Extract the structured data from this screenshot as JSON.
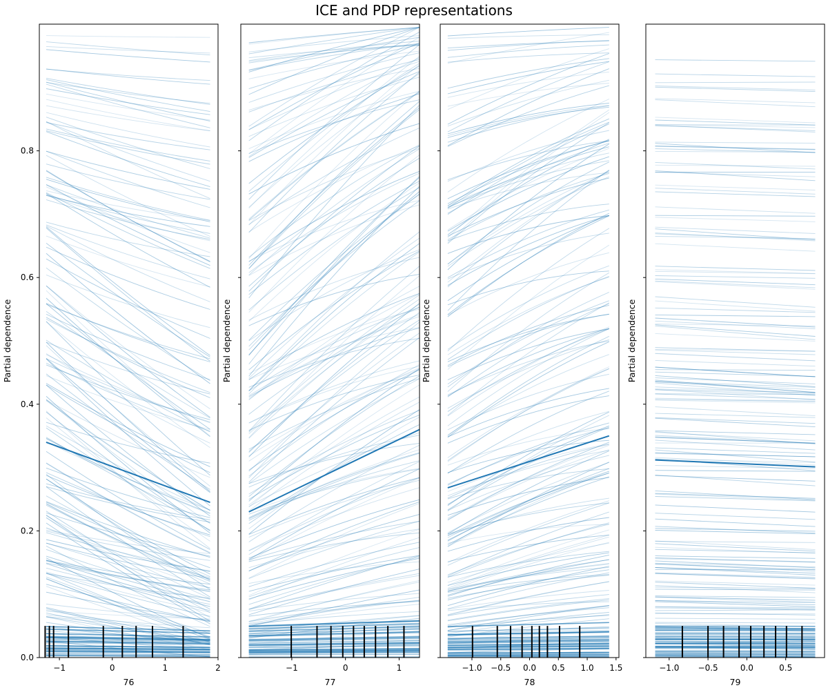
{
  "chart_data": {
    "type": "line",
    "title": "ICE and PDP representations",
    "ylabel": "Partial dependence",
    "ylim": [
      0,
      1
    ],
    "yticks": [
      0.0,
      0.2,
      0.4,
      0.6,
      0.8
    ],
    "colors": {
      "ice": "#1f77b4",
      "pdp": "#1f77b4",
      "deciles": "#000000"
    },
    "grid": false,
    "subplots": [
      {
        "xlabel": "76",
        "xlim": [
          -1.38,
          2.0
        ],
        "xticks": [
          -1,
          0,
          1,
          2
        ],
        "pdp": {
          "x": [
            -1.25,
            1.85
          ],
          "y": [
            0.34,
            0.245
          ]
        },
        "deciles": [
          -1.27,
          -1.19,
          -1.11,
          -0.83,
          -0.17,
          0.19,
          0.45,
          0.76,
          1.34
        ],
        "ice_trend": -0.28
      },
      {
        "xlabel": "77",
        "xlim": [
          -1.95,
          1.38
        ],
        "xticks": [
          -1,
          0,
          1
        ],
        "pdp": {
          "x": [
            -1.8,
            1.38
          ],
          "y": [
            0.23,
            0.36
          ]
        },
        "deciles": [
          -1.01,
          -0.53,
          -0.27,
          -0.05,
          0.15,
          0.35,
          0.56,
          0.79,
          1.09
        ],
        "ice_trend": 0.35
      },
      {
        "xlabel": "78",
        "xlim": [
          -1.55,
          1.55
        ],
        "xticks": [
          -1.0,
          -0.5,
          0.0,
          0.5,
          1.0,
          1.5
        ],
        "pdp": {
          "x": [
            -1.42,
            1.38
          ],
          "y": [
            0.268,
            0.35
          ]
        },
        "deciles": [
          -0.99,
          -0.56,
          -0.33,
          -0.13,
          0.04,
          0.17,
          0.31,
          0.52,
          0.87
        ],
        "ice_trend": 0.26
      },
      {
        "xlabel": "79",
        "xlim": [
          -1.3,
          1.0
        ],
        "xticks": [
          -1.0,
          -0.5,
          0.0,
          0.5
        ],
        "pdp": {
          "x": [
            -1.18,
            0.88
          ],
          "y": [
            0.312,
            0.301
          ]
        },
        "deciles": [
          -0.83,
          -0.5,
          -0.3,
          -0.1,
          0.05,
          0.22,
          0.37,
          0.51,
          0.71
        ],
        "ice_trend": -0.02
      }
    ]
  }
}
